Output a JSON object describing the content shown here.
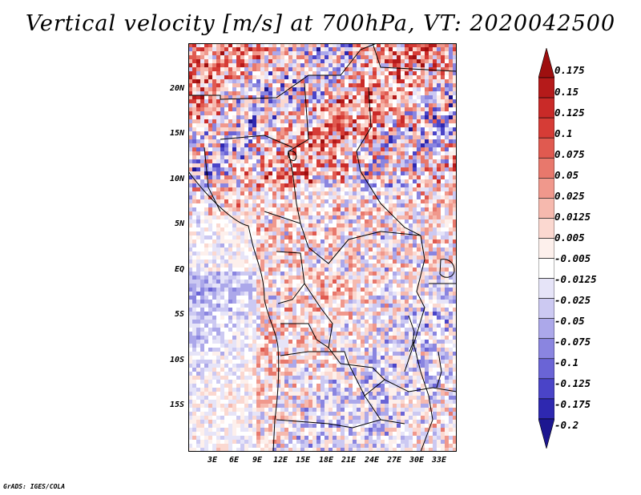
{
  "title": "Vertical velocity [m/s] at 700hPa, VT: 2020042500",
  "credit": "GrADS: IGES/COLA",
  "latitude_labels": [
    "20N",
    "15N",
    "10N",
    "5N",
    "EQ",
    "5S",
    "10S",
    "15S"
  ],
  "longitude_labels": [
    "3E",
    "6E",
    "9E",
    "12E",
    "15E",
    "18E",
    "21E",
    "24E",
    "27E",
    "30E",
    "33E"
  ],
  "colorbar": {
    "labels": [
      "0.175",
      "0.15",
      "0.125",
      "0.1",
      "0.075",
      "0.05",
      "0.025",
      "0.0125",
      "0.005",
      "-0.005",
      "-0.0125",
      "-0.025",
      "-0.05",
      "-0.075",
      "-0.1",
      "-0.125",
      "-0.175",
      "-0.2"
    ],
    "colors": [
      "#9e0f0f",
      "#b51a1a",
      "#c92a28",
      "#d63c36",
      "#e05a50",
      "#e8786c",
      "#f0988c",
      "#f6b9ae",
      "#fbd8d0",
      "#fdf0ec",
      "#ffffff",
      "#e6e4f8",
      "#ccc9f2",
      "#aca8ea",
      "#8a85e0",
      "#6a64d6",
      "#4a44c8",
      "#2e28b0",
      "#1c1690"
    ]
  },
  "chart_data": {
    "type": "heatmap",
    "title": "Vertical velocity [m/s] at 700hPa, VT: 2020042500",
    "variable": "Vertical velocity",
    "units": "m/s",
    "level": "700hPa",
    "valid_time": "2020042500",
    "lon_range": [
      0,
      35
    ],
    "lat_range": [
      -20,
      25
    ],
    "contour_levels": [
      -0.2,
      -0.175,
      -0.125,
      -0.1,
      -0.075,
      -0.05,
      -0.025,
      -0.0125,
      -0.005,
      0.005,
      0.0125,
      0.025,
      0.05,
      0.075,
      0.1,
      0.125,
      0.15,
      0.175
    ]
  }
}
